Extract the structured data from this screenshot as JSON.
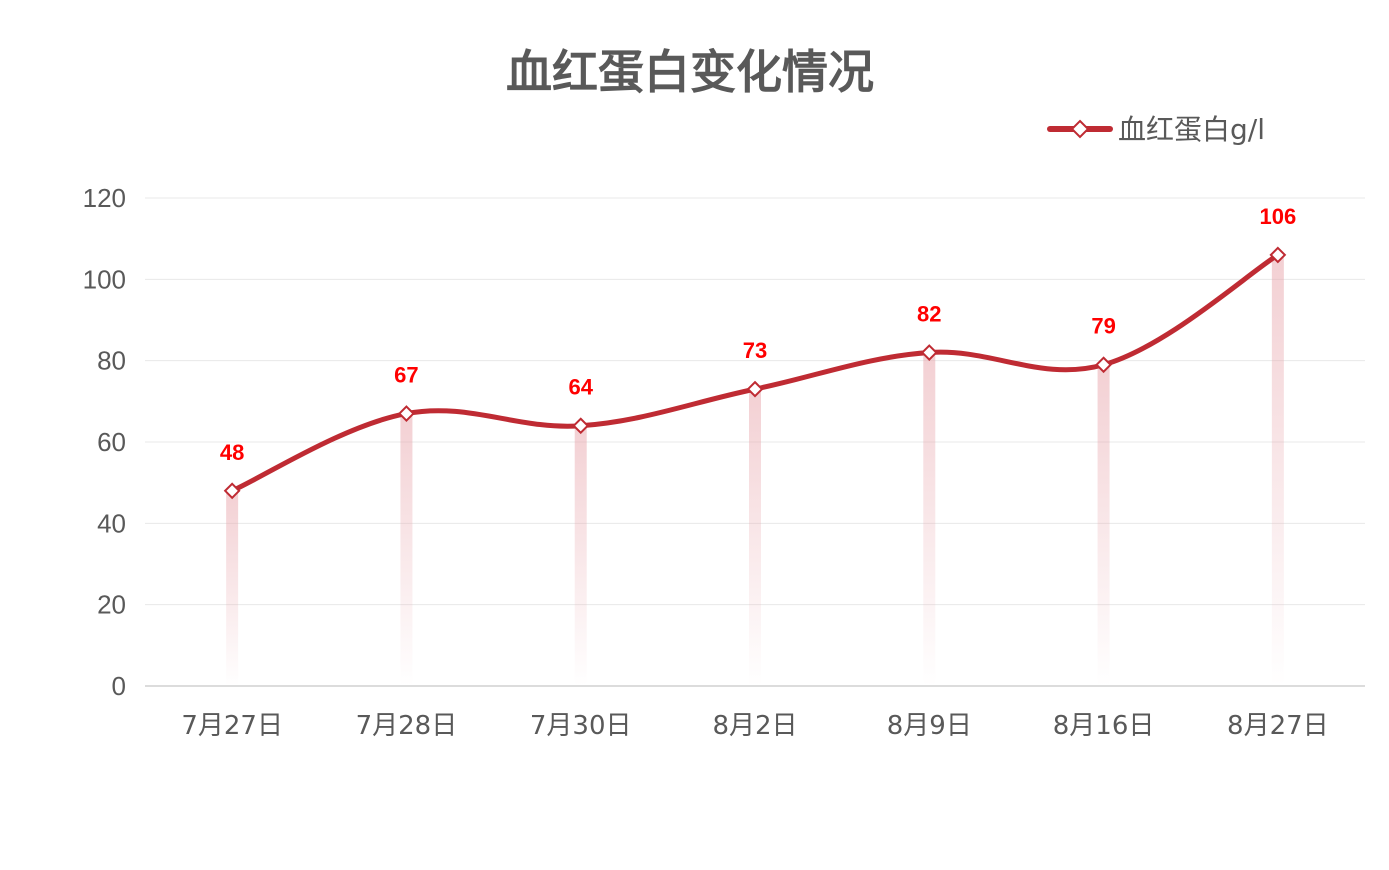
{
  "chart_data": {
    "type": "line",
    "title": "血红蛋白变化情况",
    "xlabel": "",
    "ylabel": "",
    "categories": [
      "7月27日",
      "7月28日",
      "7月30日",
      "8月2日",
      "8月9日",
      "8月16日",
      "8月27日"
    ],
    "series": [
      {
        "name": "血红蛋白g/l",
        "values": [
          48,
          67,
          64,
          73,
          82,
          79,
          106
        ]
      }
    ],
    "ylim": [
      0,
      120
    ],
    "yticks": [
      "0",
      "20",
      "40",
      "60",
      "80",
      "100",
      "120"
    ],
    "grid": true,
    "legend_position": "top-right",
    "smooth": true,
    "marker": "diamond",
    "colors": {
      "line": "#bf2b33",
      "data_label": "#ff0000",
      "text": "#595959",
      "grid": "#e8e8e8",
      "drop_line": "#f2cfd2"
    }
  }
}
